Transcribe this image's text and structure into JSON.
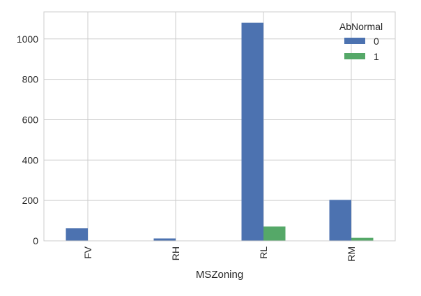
{
  "chart_data": {
    "type": "bar",
    "title": "",
    "xlabel": "MSZoning",
    "ylabel": "",
    "categories": [
      "FV",
      "RH",
      "RL",
      "RM"
    ],
    "series": [
      {
        "name": "0",
        "values": [
          62,
          12,
          1080,
          203
        ],
        "color": "#4C72B0"
      },
      {
        "name": "1",
        "values": [
          0,
          0,
          71,
          15
        ],
        "color": "#55A868"
      }
    ],
    "ylim": [
      0,
      1134
    ],
    "yticks": [
      0,
      200,
      400,
      600,
      800,
      1000
    ],
    "grid": true,
    "legend": {
      "title": "AbNormal",
      "placement": "top-right"
    },
    "colors": {
      "background": "#ffffff",
      "grid": "#cccccc",
      "frame": "#cccccc"
    }
  }
}
